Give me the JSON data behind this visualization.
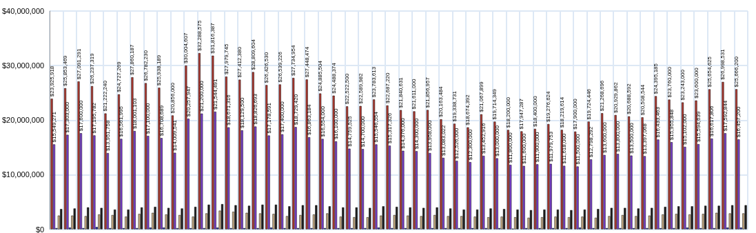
{
  "chart_data": {
    "type": "bar",
    "categories": [
      null,
      null,
      null,
      null,
      null,
      null,
      null,
      null,
      null,
      null,
      null,
      null,
      null,
      null,
      null,
      null,
      null,
      null,
      null,
      null,
      null,
      null,
      null,
      null,
      null,
      null,
      null,
      null,
      null,
      null,
      null,
      null,
      null,
      null,
      null,
      null,
      null,
      null,
      null,
      null,
      null,
      null,
      null,
      null,
      null,
      null,
      null,
      null,
      null,
      null,
      null,
      null
    ],
    "series": [
      {
        "color": "#b03a32",
        "values": [
          23925918,
          25853469,
          27091291,
          26237319,
          21222240,
          24727269,
          27860187,
          26782230,
          25938189,
          20856000,
          30004607,
          32288575,
          31816387,
          27979745,
          27412380,
          28809604,
          26426530,
          26539226,
          27734954,
          27448474,
          24885504,
          24488374,
          22522500,
          22589982,
          23783613,
          22687220,
          21840631,
          21611000,
          21856957,
          20163484,
          19338731,
          18674392,
          21067899,
          19714349,
          18200000,
          17947287,
          18400000,
          19276624,
          18219614,
          17900000,
          19724446,
          21268696,
          20929862,
          20688592,
          20508544,
          24395185,
          23760000,
          23243000,
          23600000,
          25654625,
          26998531,
          25666200
        ],
        "value_labels": [
          "$23,925,918",
          "$25,853,469",
          "$27,091,291",
          "$26,237,319",
          "$21,222,240",
          "$24,727,269",
          "$27,860,187",
          "$26,782,230",
          "$25,938,189",
          "$20,856,000",
          "$30,004,607",
          "$32,288,575",
          "$31,816,387",
          "$27,979,745",
          "$27,412,380",
          "$28,809,604",
          "$26,426,530",
          "$26,539,226",
          "$27,734,954",
          "$27,448,474",
          "$24,885,504",
          "$24,488,374",
          "$22,522,500",
          "$22,589,982",
          "$23,783,613",
          "$22,687,220",
          "$21,840,631",
          "$21,611,000",
          "$21,856,957",
          "$20,163,484",
          "$19,338,731",
          "$18,674,392",
          "$21,067,899",
          "$19,714,349",
          "$18,200,000",
          "$17,947,287",
          "$18,400,000",
          "$19,276,624",
          "$18,219,614",
          "$17,900,000",
          "$19,724,446",
          "$21,268,696",
          "$20,929,862",
          "$20,688,592",
          "$20,508,544",
          "$24,395,185",
          "$23,760,000",
          "$23,243,000",
          "$23,600,000",
          "$25,654,625",
          "$26,998,531",
          "$25,666,200"
        ]
      },
      {
        "color": "#7b3fd0",
        "values": [
          15549271,
          17303000,
          17600000,
          17195782,
          13951758,
          16561995,
          18001103,
          17100000,
          16708689,
          14009541,
          20257947,
          21200000,
          21544491,
          18671316,
          18129500,
          18826693,
          17178591,
          17400000,
          18729420,
          16863184,
          16554000,
          16100000,
          14759525,
          14700000,
          15546554,
          15317326,
          14376000,
          14300000,
          13958000,
          13083022,
          12526000,
          12300000,
          13452916,
          13000000,
          11800000,
          11600000,
          11900000,
          11979753,
          11618000,
          11500000,
          12798292,
          13600000,
          13800000,
          13500000,
          13397068,
          16433463,
          15955848,
          15102000,
          15594639,
          16617806,
          17592844,
          16457200
        ],
        "value_labels": [
          "$15,549,271",
          "$17,303,000",
          "$17,600,000",
          "$17,195,782",
          "$13,951,758",
          "$16,561,995",
          "$18,001,103",
          "$17,100,000",
          "$16,708,689",
          "$14,009,541",
          "$20,257,947",
          "$21,200,000",
          "$21,544,491",
          "$18,671,316",
          "$18,129,500",
          "$18,826,693",
          "$17,178,591",
          "$17,400,000",
          "$18,729,420",
          "$16,863,184",
          "$16,554,000",
          "$16,100,000",
          "$14,759,525",
          "$14,700,000",
          "$15,546,554",
          "$15,317,326",
          "$14,376,000",
          "$14,300,000",
          "$13,958,000",
          "$13,083,022",
          "$12,526,000",
          "$12,300,000",
          "$13,452,916",
          "$13,000,000",
          "$11,800,000",
          "$11,600,000",
          "$11,900,000",
          "$11,979,753",
          "$11,618,000",
          "$11,500,000",
          "$12,798,292",
          "$13,600,000",
          "$13,800,000",
          "$13,500,000",
          "$13,397,068",
          "$16,433,463",
          "$15,955,848",
          "$15,102,000",
          "$15,594,639",
          "$16,617,806",
          "$17,592,844",
          "$16,457,200"
        ]
      },
      {
        "color": "#2030c0",
        "values": [
          200000,
          300000,
          200000,
          400000,
          200000,
          200000,
          200000,
          300000,
          300000,
          200000,
          200000,
          200000,
          300000,
          200000,
          200000,
          200000,
          300000,
          200000,
          200000,
          200000,
          200000,
          200000,
          200000,
          200000,
          300000,
          200000,
          200000,
          200000,
          200000,
          200000,
          200000,
          200000,
          200000,
          200000,
          100000,
          200000,
          200000,
          200000,
          200000,
          300000,
          200000,
          200000,
          200000,
          200000,
          200000,
          200000,
          200000,
          300000,
          200000,
          200000,
          300000,
          300000
        ]
      },
      {
        "color": "#c8ad85",
        "values": [
          2500000,
          2500000,
          2400000,
          2700000,
          2600000,
          2300000,
          2800000,
          3000000,
          2700000,
          2600000,
          2300000,
          2900000,
          3400000,
          3200000,
          3000000,
          2900000,
          2800000,
          2400000,
          2600000,
          2700000,
          2900000,
          2300000,
          2200000,
          2200000,
          2500000,
          2600000,
          2500000,
          2400000,
          2600000,
          2400000,
          2400000,
          2300000,
          2200000,
          2300000,
          2200000,
          2100000,
          2200000,
          2300000,
          2200000,
          2300000,
          2100000,
          2400000,
          2600000,
          2400000,
          2500000,
          2700000,
          2800000,
          2700000,
          2800000,
          3000000,
          2900000,
          2900000
        ]
      },
      {
        "color": "#1e1e1e",
        "values": [
          3700000,
          3800000,
          4000000,
          3900000,
          3600000,
          3600000,
          4000000,
          4100000,
          3900000,
          3800000,
          4100000,
          4500000,
          4600000,
          4400000,
          4300000,
          4500000,
          4500000,
          4200000,
          4400000,
          4400000,
          4200000,
          4000000,
          4000000,
          3900000,
          4200000,
          4100000,
          4000000,
          3900000,
          4000000,
          3800000,
          3600000,
          3600000,
          3800000,
          3700000,
          3600000,
          3500000,
          3600000,
          3600000,
          3500000,
          3600000,
          3700000,
          3900000,
          3900000,
          3800000,
          3900000,
          4100000,
          4200000,
          4200000,
          4300000,
          4300000,
          4400000,
          4400000
        ]
      }
    ],
    "ylim": [
      0,
      40000000
    ],
    "yticks": [
      {
        "value": 0,
        "label": "$0"
      },
      {
        "value": 10000000,
        "label": "$10,000,000"
      },
      {
        "value": 20000000,
        "label": "$20,000,000"
      },
      {
        "value": 30000000,
        "label": "$30,000,000"
      },
      {
        "value": 40000000,
        "label": "$40,000,000"
      }
    ],
    "grid": true,
    "tick_labels": "y"
  }
}
